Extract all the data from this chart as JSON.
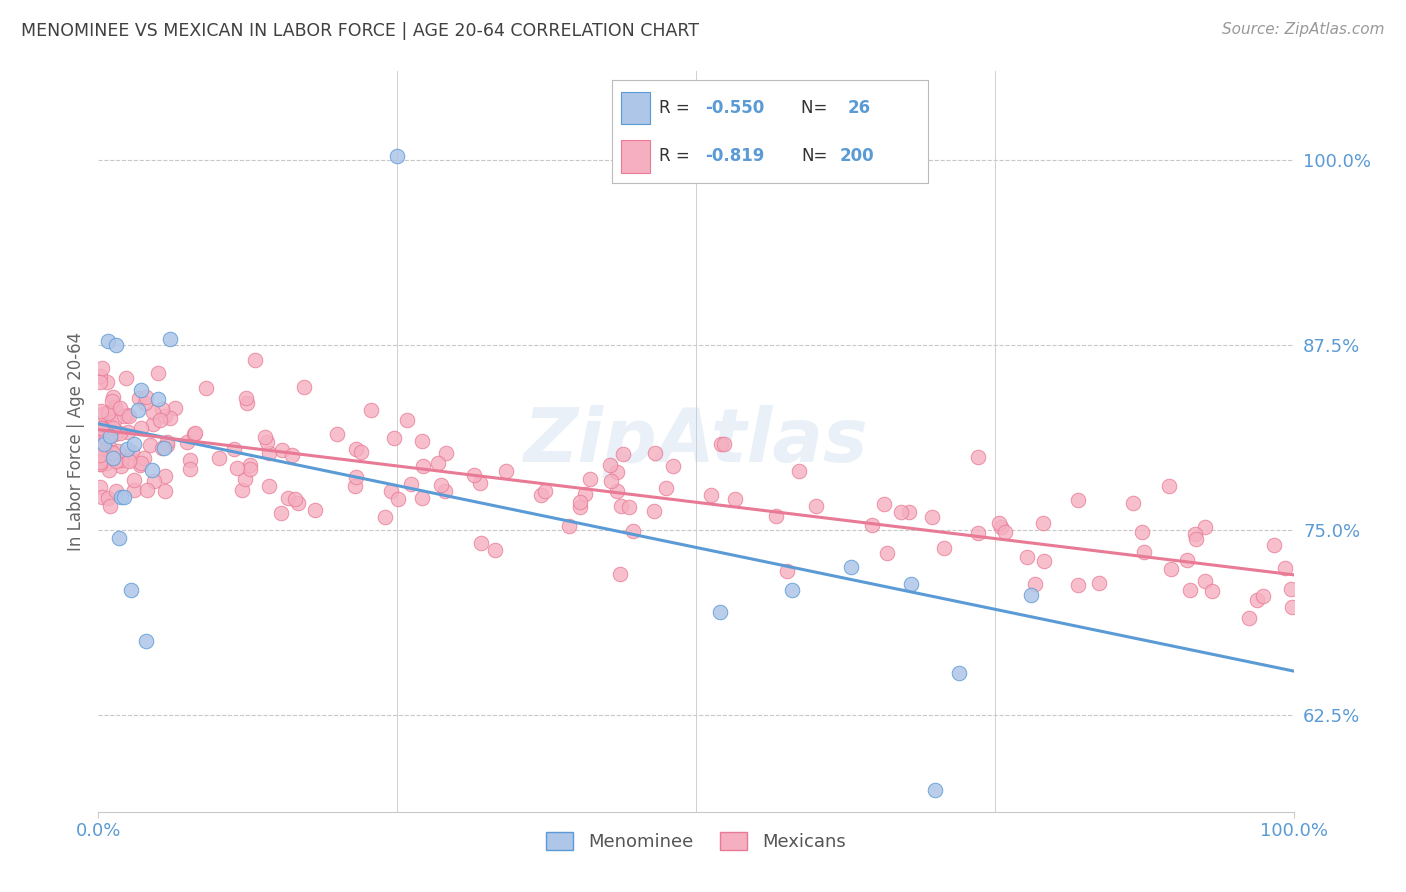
{
  "title": "MENOMINEE VS MEXICAN IN LABOR FORCE | AGE 20-64 CORRELATION CHART",
  "source": "Source: ZipAtlas.com",
  "ylabel": "In Labor Force | Age 20-64",
  "xlim": [
    0.0,
    1.0
  ],
  "ylim": [
    0.56,
    1.06
  ],
  "ytick_vals": [
    0.625,
    0.75,
    0.875,
    1.0
  ],
  "ytick_labels": [
    "62.5%",
    "75.0%",
    "87.5%",
    "100.0%"
  ],
  "xtick_vals": [
    0.0,
    1.0
  ],
  "xtick_labels": [
    "0.0%",
    "100.0%"
  ],
  "menominee_color": "#aec6e8",
  "mexican_color": "#f5afc0",
  "menominee_line_color": "#5b9bd5",
  "mexican_line_color": "#e87a95",
  "title_color": "#404040",
  "tick_color": "#5b9bd5",
  "watermark": "ZipAtlas",
  "men_line_x0": 0.0,
  "men_line_y0": 0.822,
  "men_line_x1": 1.0,
  "men_line_y1": 0.655,
  "mex_line_x0": 0.0,
  "mex_line_y0": 0.818,
  "mex_line_x1": 1.0,
  "mex_line_y1": 0.72
}
